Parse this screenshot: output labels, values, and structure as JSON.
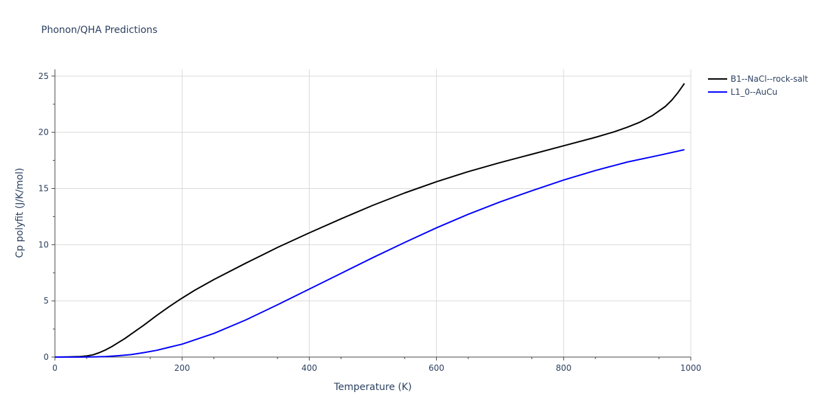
{
  "chart_data": {
    "type": "line",
    "title": "Phonon/QHA Predictions",
    "xlabel": "Temperature (K)",
    "ylabel": "Cp polyfit (J/K/mol)",
    "xlim": [
      0,
      1000
    ],
    "ylim": [
      0,
      25.6
    ],
    "xticks": [
      0,
      200,
      400,
      600,
      800,
      1000
    ],
    "yticks": [
      0,
      5,
      10,
      15,
      20,
      25
    ],
    "grid": true,
    "legend_position": "top-right",
    "series": [
      {
        "name": "B1--NaCl--rock-salt",
        "color": "#000000",
        "x": [
          0,
          20,
          40,
          50,
          60,
          70,
          80,
          90,
          100,
          110,
          120,
          140,
          160,
          180,
          200,
          220,
          250,
          300,
          350,
          400,
          450,
          500,
          550,
          600,
          650,
          700,
          750,
          800,
          850,
          880,
          900,
          920,
          940,
          960,
          970,
          980,
          990
        ],
        "y": [
          0,
          0.01,
          0.05,
          0.1,
          0.2,
          0.4,
          0.65,
          0.95,
          1.3,
          1.65,
          2.05,
          2.85,
          3.7,
          4.5,
          5.25,
          5.95,
          6.9,
          8.35,
          9.75,
          11.05,
          12.3,
          13.5,
          14.6,
          15.6,
          16.5,
          17.3,
          18.05,
          18.8,
          19.55,
          20.05,
          20.45,
          20.9,
          21.5,
          22.3,
          22.85,
          23.55,
          24.35
        ]
      },
      {
        "name": "L1_0--AuCu",
        "color": "#0000ff",
        "x": [
          0,
          40,
          60,
          80,
          100,
          120,
          140,
          160,
          180,
          200,
          250,
          300,
          350,
          400,
          450,
          500,
          550,
          600,
          650,
          700,
          750,
          800,
          850,
          900,
          950,
          990
        ],
        "y": [
          0,
          0,
          0.01,
          0.04,
          0.12,
          0.22,
          0.4,
          0.6,
          0.88,
          1.15,
          2.1,
          3.3,
          4.65,
          6.05,
          7.45,
          8.85,
          10.2,
          11.5,
          12.7,
          13.8,
          14.8,
          15.75,
          16.6,
          17.35,
          17.95,
          18.45
        ]
      }
    ]
  }
}
